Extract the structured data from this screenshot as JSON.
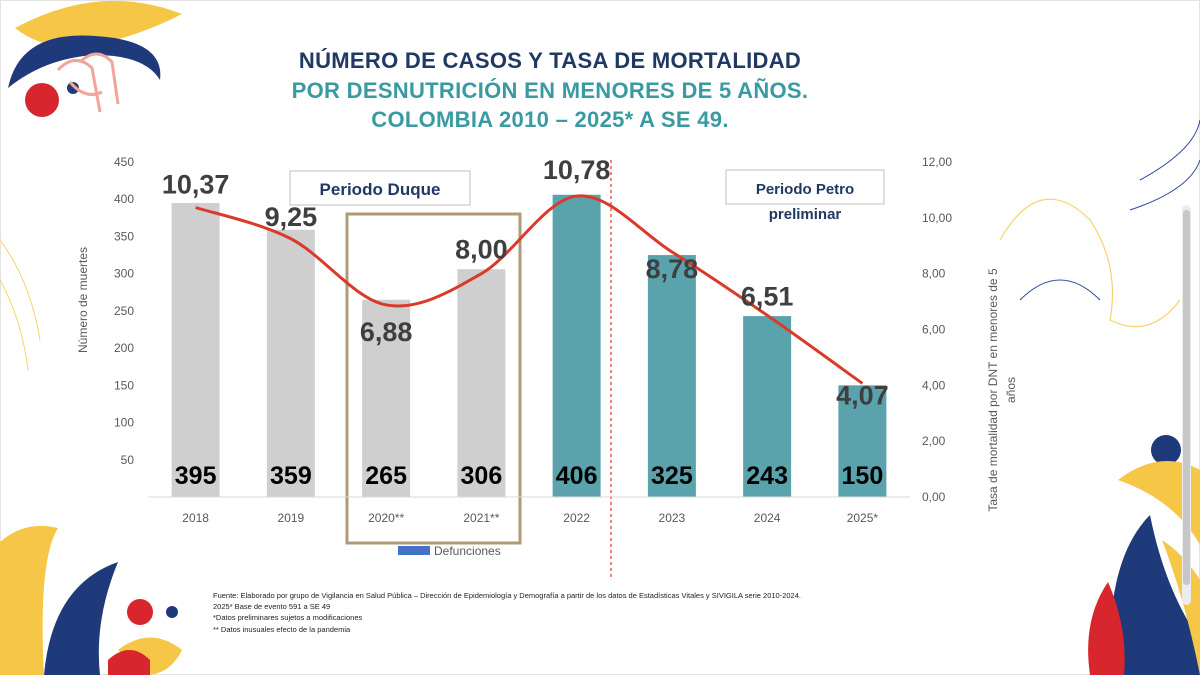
{
  "title": {
    "line1": "NÚMERO DE CASOS Y TASA DE MORTALIDAD",
    "line2": "POR DESNUTRICIÓN EN MENORES DE 5 AÑOS.",
    "line3": "COLOMBIA 2010 – 2025* A SE 49."
  },
  "footnotes": [
    "Fuente: Elaborado por grupo de Vigilancia en Salud Pública – Dirección de Epidemiología y Demografía a partir de los datos de Estadísticas Vitales y SIVIGILA serie 2010-2024.",
    "2025* Base de evento 591 a SE 49",
    "*Datos preliminares sujetos a modificaciones",
    "** Datos inusuales efecto de la pandemia"
  ],
  "colors": {
    "bar_duque": "#d0cfd0",
    "bar_petro": "#5aa3ad",
    "line": "#d93a2b",
    "box_border": "#b09a76",
    "divider": "#e0342b",
    "legend_swatch": "#4472c4",
    "label_box_text": "#203864",
    "deco_navy": "#1f3a7a",
    "deco_yellow": "#f6c646",
    "deco_red": "#d7262d"
  },
  "chart_data": {
    "type": "bar",
    "categories": [
      "2018",
      "2019",
      "2020**",
      "2021**",
      "2022",
      "2023",
      "2024",
      "2025*"
    ],
    "series": [
      {
        "name": "Defunciones",
        "type": "bar",
        "axis": "left",
        "values": [
          395,
          359,
          265,
          306,
          406,
          325,
          243,
          150
        ],
        "labels": [
          "395",
          "359",
          "265",
          "306",
          "406",
          "325",
          "243",
          "150"
        ]
      },
      {
        "type": "line",
        "axis": "right",
        "values": [
          10.37,
          9.25,
          6.88,
          8.0,
          10.78,
          8.78,
          6.51,
          4.07
        ],
        "labels": [
          "10,37",
          "9,25",
          "6,88",
          "8,00",
          "10,78",
          "8,78",
          "6,51",
          "4,07"
        ]
      }
    ],
    "ylabel": "Número de muertes",
    "y2label_line1": "Tasa de mortalidad por DNT en menores de 5",
    "y2label_line2": "años",
    "ylim": [
      0,
      450
    ],
    "y2lim": [
      0,
      12
    ],
    "yticks": [
      "50",
      "100",
      "150",
      "200",
      "250",
      "300",
      "350",
      "400",
      "450"
    ],
    "y2ticks": [
      "0,00",
      "2,00",
      "4,00",
      "6,00",
      "8,00",
      "10,00",
      "12,00"
    ],
    "legend": "bottom",
    "grid": false,
    "annotations": {
      "duque_label": "Periodo Duque",
      "petro_label_line1": "Periodo Petro",
      "petro_label_line2": "preliminar"
    }
  }
}
